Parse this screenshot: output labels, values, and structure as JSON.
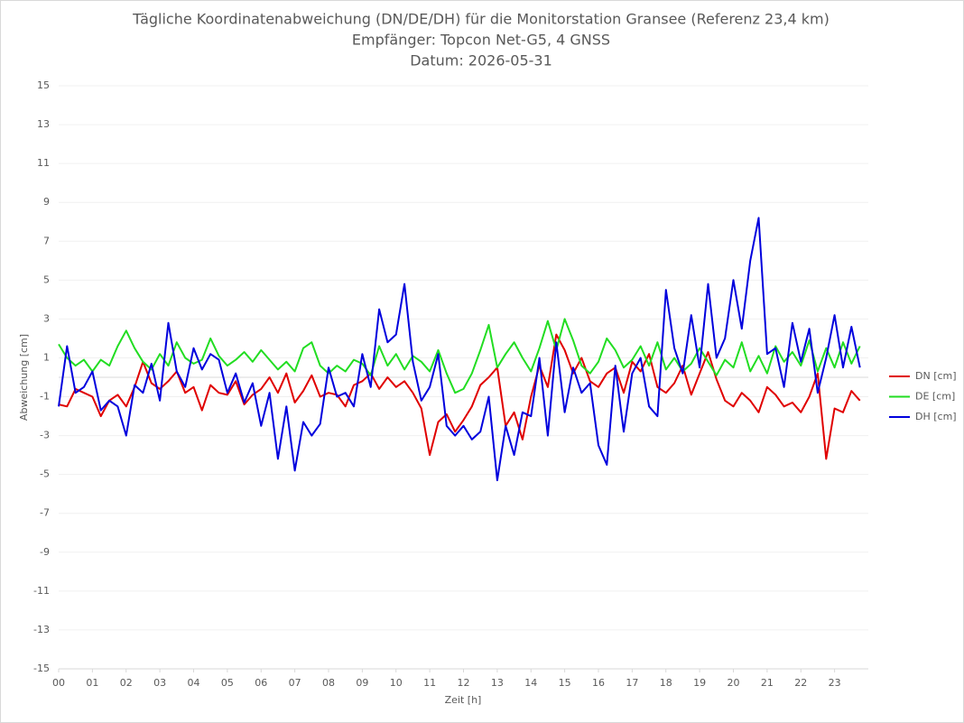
{
  "chart_data": {
    "type": "line",
    "title": "Tägliche Koordinatenabweichung (DN/DE/DH) für die Monitorstation Gransee (Referenz 23,4 km)",
    "subtitle": "Empfänger: Topcon Net-G5, 4 GNSS",
    "date_label": "Datum: 2026-05-31",
    "x_label": "Zeit [h]",
    "y_label": "Abweichung [cm]",
    "legend": "right",
    "grid": true,
    "xlim": [
      0,
      24
    ],
    "ylim": [
      -15,
      15
    ],
    "yticks": [
      -15,
      -13,
      -11,
      -9,
      -7,
      -5,
      -3,
      -1,
      1,
      3,
      5,
      7,
      9,
      11,
      13,
      15
    ],
    "xticks": [
      {
        "value": 0,
        "label": "00"
      },
      {
        "value": 1,
        "label": "01"
      },
      {
        "value": 2,
        "label": "02"
      },
      {
        "value": 3,
        "label": "03"
      },
      {
        "value": 4,
        "label": "04"
      },
      {
        "value": 5,
        "label": "05"
      },
      {
        "value": 6,
        "label": "06"
      },
      {
        "value": 7,
        "label": "07"
      },
      {
        "value": 8,
        "label": "08"
      },
      {
        "value": 9,
        "label": "09"
      },
      {
        "value": 10,
        "label": "10"
      },
      {
        "value": 11,
        "label": "11"
      },
      {
        "value": 12,
        "label": "12"
      },
      {
        "value": 13,
        "label": "13"
      },
      {
        "value": 14,
        "label": "14"
      },
      {
        "value": 15,
        "label": "15"
      },
      {
        "value": 16,
        "label": "16"
      },
      {
        "value": 17,
        "label": "17"
      },
      {
        "value": 18,
        "label": "18"
      },
      {
        "value": 19,
        "label": "19"
      },
      {
        "value": 20,
        "label": "20"
      },
      {
        "value": 21,
        "label": "21"
      },
      {
        "value": 22,
        "label": "22"
      },
      {
        "value": 23,
        "label": "23"
      }
    ],
    "x": [
      0,
      0.25,
      0.5,
      0.75,
      1,
      1.25,
      1.5,
      1.75,
      2,
      2.25,
      2.5,
      2.75,
      3,
      3.25,
      3.5,
      3.75,
      4,
      4.25,
      4.5,
      4.75,
      5,
      5.25,
      5.5,
      5.75,
      6,
      6.25,
      6.5,
      6.75,
      7,
      7.25,
      7.5,
      7.75,
      8,
      8.25,
      8.5,
      8.75,
      9,
      9.25,
      9.5,
      9.75,
      10,
      10.25,
      10.5,
      10.75,
      11,
      11.25,
      11.5,
      11.75,
      12,
      12.25,
      12.5,
      12.75,
      13,
      13.25,
      13.5,
      13.75,
      14,
      14.25,
      14.5,
      14.75,
      15,
      15.25,
      15.5,
      15.75,
      16,
      16.25,
      16.5,
      16.75,
      17,
      17.25,
      17.5,
      17.75,
      18,
      18.25,
      18.5,
      18.75,
      19,
      19.25,
      19.5,
      19.75,
      20,
      20.25,
      20.5,
      20.75,
      21,
      21.25,
      21.5,
      21.75,
      22,
      22.25,
      22.5,
      22.75,
      23,
      23.25,
      23.5,
      23.75
    ],
    "series": [
      {
        "name": "DN [cm]",
        "color": "#e00000",
        "values": [
          -1.4,
          -1.5,
          -0.6,
          -0.8,
          -1.0,
          -2.0,
          -1.2,
          -0.9,
          -1.5,
          -0.5,
          0.8,
          -0.3,
          -0.6,
          -0.2,
          0.3,
          -0.8,
          -0.5,
          -1.7,
          -0.4,
          -0.8,
          -0.9,
          -0.2,
          -1.4,
          -0.9,
          -0.6,
          0.0,
          -0.8,
          0.2,
          -1.3,
          -0.7,
          0.1,
          -1.0,
          -0.8,
          -0.9,
          -1.5,
          -0.4,
          -0.2,
          0.2,
          -0.6,
          0.0,
          -0.5,
          -0.2,
          -0.8,
          -1.6,
          -4.0,
          -2.3,
          -1.9,
          -2.8,
          -2.2,
          -1.5,
          -0.4,
          0.0,
          0.5,
          -2.5,
          -1.8,
          -3.2,
          -1.0,
          0.6,
          -0.5,
          2.2,
          1.4,
          0.2,
          1.0,
          -0.2,
          -0.5,
          0.2,
          0.5,
          -0.8,
          0.8,
          0.3,
          1.2,
          -0.5,
          -0.8,
          -0.3,
          0.6,
          -0.9,
          0.2,
          1.3,
          -0.1,
          -1.2,
          -1.5,
          -0.8,
          -1.2,
          -1.8,
          -0.5,
          -0.9,
          -1.5,
          -1.3,
          -1.8,
          -1.0,
          0.2,
          -4.2,
          -1.6,
          -1.8,
          -0.7,
          -1.2
        ]
      },
      {
        "name": "DE [cm]",
        "color": "#22dd22",
        "values": [
          1.7,
          1.0,
          0.6,
          0.9,
          0.3,
          0.9,
          0.6,
          1.6,
          2.4,
          1.5,
          0.8,
          0.4,
          1.2,
          0.6,
          1.8,
          1.0,
          0.7,
          0.9,
          2.0,
          1.1,
          0.6,
          0.9,
          1.3,
          0.8,
          1.4,
          0.9,
          0.4,
          0.8,
          0.3,
          1.5,
          1.8,
          0.6,
          0.2,
          0.6,
          0.3,
          0.9,
          0.7,
          0.1,
          1.6,
          0.6,
          1.2,
          0.4,
          1.1,
          0.8,
          0.3,
          1.4,
          0.2,
          -0.8,
          -0.6,
          0.2,
          1.4,
          2.7,
          0.5,
          1.2,
          1.8,
          1.0,
          0.3,
          1.5,
          2.9,
          1.4,
          3.0,
          1.9,
          0.6,
          0.2,
          0.8,
          2.0,
          1.4,
          0.5,
          0.9,
          1.6,
          0.6,
          1.8,
          0.4,
          1.0,
          0.3,
          0.7,
          1.5,
          0.8,
          0.1,
          0.9,
          0.5,
          1.8,
          0.3,
          1.1,
          0.2,
          1.6,
          0.8,
          1.3,
          0.6,
          1.9,
          0.3,
          1.5,
          0.5,
          1.8,
          0.7,
          1.6
        ]
      },
      {
        "name": "DH [cm]",
        "color": "#0000dd",
        "values": [
          -1.5,
          1.6,
          -0.8,
          -0.5,
          0.3,
          -1.7,
          -1.2,
          -1.5,
          -3.0,
          -0.4,
          -0.8,
          0.7,
          -1.2,
          2.8,
          0.3,
          -0.5,
          1.5,
          0.4,
          1.2,
          0.9,
          -0.8,
          0.2,
          -1.3,
          -0.3,
          -2.5,
          -0.8,
          -4.2,
          -1.5,
          -4.8,
          -2.3,
          -3.0,
          -2.4,
          0.5,
          -1.0,
          -0.8,
          -1.5,
          1.2,
          -0.5,
          3.5,
          1.8,
          2.2,
          4.8,
          0.8,
          -1.2,
          -0.5,
          1.2,
          -2.5,
          -3.0,
          -2.5,
          -3.2,
          -2.8,
          -1.0,
          -5.3,
          -2.5,
          -4.0,
          -1.8,
          -2.0,
          1.0,
          -3.0,
          1.8,
          -1.8,
          0.5,
          -0.8,
          -0.3,
          -3.5,
          -4.5,
          0.6,
          -2.8,
          0.2,
          1.0,
          -1.5,
          -2.0,
          4.5,
          1.5,
          0.2,
          3.2,
          0.5,
          4.8,
          1.0,
          2.0,
          5.0,
          2.5,
          6.0,
          8.2,
          1.2,
          1.5,
          -0.5,
          2.8,
          0.8,
          2.5,
          -0.8,
          1.0,
          3.2,
          0.5,
          2.6,
          0.5
        ]
      }
    ]
  }
}
